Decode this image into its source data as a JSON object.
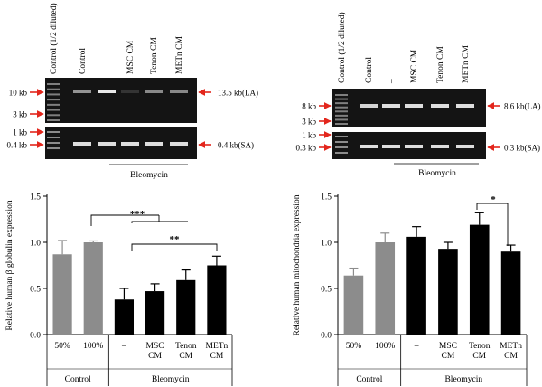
{
  "colors": {
    "control_bar": "#8c8c8c",
    "bleomycin_bar": "#000000",
    "arrow": "#e3261c",
    "gel_bg": "#141414",
    "band": "#e9e9e9"
  },
  "gels": [
    {
      "lane_labels": [
        "Control (1/2 diluted)",
        "Control",
        "–",
        "MSC CM",
        "Tenon CM",
        "METn CM"
      ],
      "left_markers": [
        "10 kb",
        "3 kb",
        "1 kb",
        "0.4 kb"
      ],
      "right_labels": [
        "13.5 kb(LA)",
        "0.4 kb(SA)"
      ],
      "group_label": "Bleomycin"
    },
    {
      "lane_labels": [
        "Control (1/2 diluted)",
        "Control",
        "–",
        "MSC CM",
        "Tenon CM",
        "METn CM"
      ],
      "left_markers": [
        "8 kb",
        "3 kb",
        "1 kb",
        "0.3 kb"
      ],
      "right_labels": [
        "8.6 kb(LA)",
        "0.3 kb(SA)"
      ],
      "group_label": "Bleomycin"
    }
  ],
  "chart_data": [
    {
      "type": "bar",
      "ylabel": "Relative human β globulin expression",
      "ylim": [
        0,
        1.5
      ],
      "yticks": [
        "0.0",
        "0.5",
        "1.0",
        "1.5"
      ],
      "categories": [
        "50%",
        "100%",
        "–",
        "MSC CM",
        "Tenon CM",
        "METn CM"
      ],
      "values": [
        0.87,
        1.0,
        0.38,
        0.47,
        0.59,
        0.75
      ],
      "errors": [
        0.15,
        0.015,
        0.12,
        0.08,
        0.11,
        0.1
      ],
      "groups": [
        {
          "label": "Control",
          "count": 2
        },
        {
          "label": "Bleomycin",
          "count": 4
        }
      ],
      "significance": [
        "***",
        "**"
      ]
    },
    {
      "type": "bar",
      "ylabel": "Relative human mitochondria expression",
      "ylim": [
        0,
        1.5
      ],
      "yticks": [
        "0.0",
        "0.5",
        "1.0",
        "1.5"
      ],
      "categories": [
        "50%",
        "100%",
        "–",
        "MSC CM",
        "Tenon CM",
        "METn CM"
      ],
      "values": [
        0.64,
        1.0,
        1.06,
        0.93,
        1.19,
        0.9
      ],
      "errors": [
        0.08,
        0.1,
        0.11,
        0.07,
        0.13,
        0.07
      ],
      "groups": [
        {
          "label": "Control",
          "count": 2
        },
        {
          "label": "Bleomycin",
          "count": 4
        }
      ],
      "significance": [
        "*"
      ]
    }
  ]
}
